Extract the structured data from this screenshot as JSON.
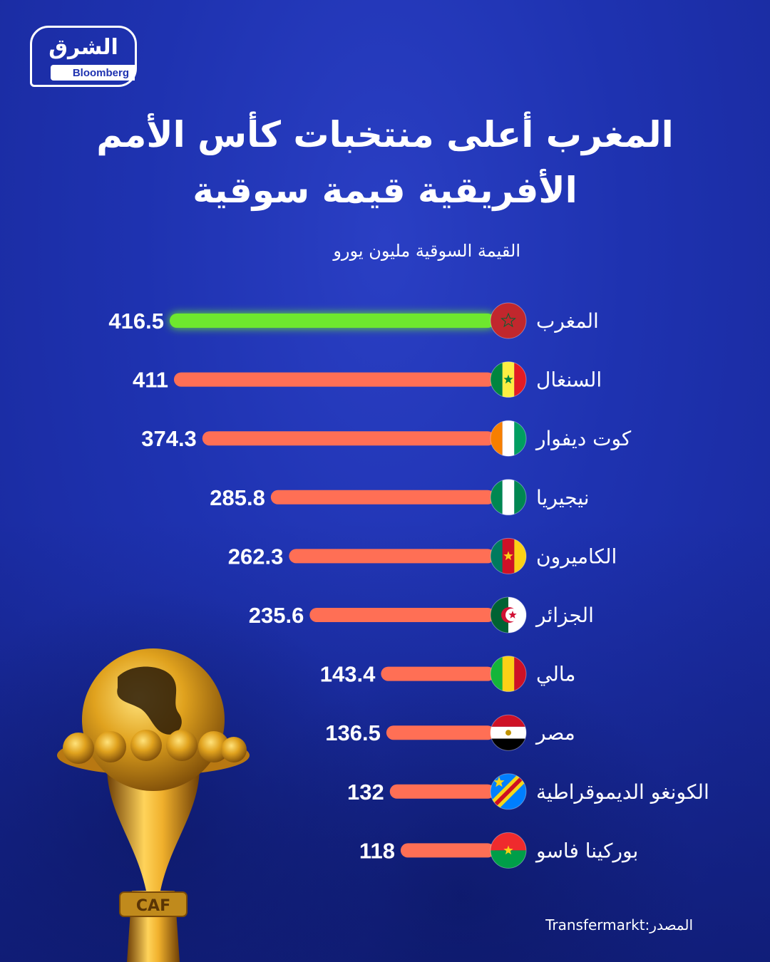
{
  "logo": {
    "arabic": "الشرق",
    "english": "Bloomberg"
  },
  "title": "المغرب أعلى منتخبات كأس الأمم الأفريقية قيمة سوقية",
  "source": "المصدر:Transfermarkt",
  "trophy_text": "CAF",
  "colors": {
    "highlight_bar": "#6ee82e",
    "bar": "#ff6f55",
    "background": "#1e32b0"
  },
  "chart_data": {
    "type": "bar",
    "orientation": "horizontal",
    "title": "المغرب أعلى منتخبات كأس الأمم الأفريقية قيمة سوقية",
    "subtitle": "القيمة السوقية مليون يورو",
    "categories": [
      "المغرب",
      "السنغال",
      "كوت ديفوار",
      "نيجيريا",
      "الكاميرون",
      "الجزائر",
      "مالي",
      "مصر",
      "الكونغو الديموقراطية",
      "بوركينا فاسو"
    ],
    "value_labels": [
      "416.5",
      "411",
      "374.3",
      "285.8",
      "262.3",
      "235.6",
      "143.4",
      "136.5",
      "132",
      "118"
    ],
    "values": [
      416.5,
      411,
      374.3,
      285.8,
      262.3,
      235.6,
      143.4,
      136.5,
      132,
      118
    ],
    "flags": [
      "morocco-flag-icon",
      "senegal-flag-icon",
      "ivory-coast-flag-icon",
      "nigeria-flag-icon",
      "cameroon-flag-icon",
      "algeria-flag-icon",
      "mali-flag-icon",
      "egypt-flag-icon",
      "dr-congo-flag-icon",
      "burkina-faso-flag-icon"
    ],
    "highlight_index": 0,
    "grid": false
  }
}
